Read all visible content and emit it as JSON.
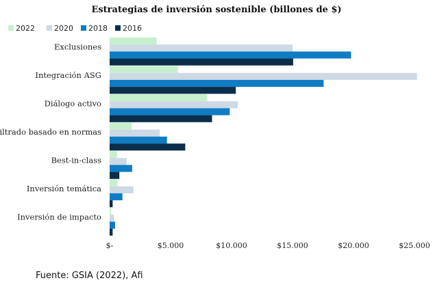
{
  "source": "Fuente: GSIA (2022), Afi",
  "chart_data": {
    "type": "bar",
    "orientation": "horizontal",
    "title": "Estrategias de inversión sostenible (billones de $)",
    "categories": [
      "Exclusiones",
      "Integración ASG",
      "Diálogo activo",
      "Filtrado basado en normas",
      "Best-in-class",
      "Inversión temática",
      "Inversión de impacto"
    ],
    "series": [
      {
        "name": "2022",
        "color": "#c6efce",
        "values": [
          3850,
          5600,
          8000,
          1800,
          600,
          650,
          100
        ]
      },
      {
        "name": "2020",
        "color": "#cdd9e4",
        "values": [
          15000,
          25200,
          10500,
          4100,
          1400,
          1950,
          350
        ]
      },
      {
        "name": "2018",
        "color": "#0f7cc4",
        "values": [
          19800,
          17550,
          9850,
          4700,
          1850,
          1050,
          450
        ]
      },
      {
        "name": "2016",
        "color": "#0b2e4a",
        "values": [
          15050,
          10350,
          8400,
          6200,
          800,
          250,
          250
        ]
      }
    ],
    "xlim": [
      0,
      25000
    ],
    "xticks": [
      0,
      5000,
      10000,
      15000,
      20000,
      25000
    ],
    "xtick_labels": [
      "$-",
      "$5.000",
      "$10.000",
      "$15.000",
      "$20.000",
      "$25.000"
    ],
    "grid": false,
    "legend_position": "top-left"
  }
}
